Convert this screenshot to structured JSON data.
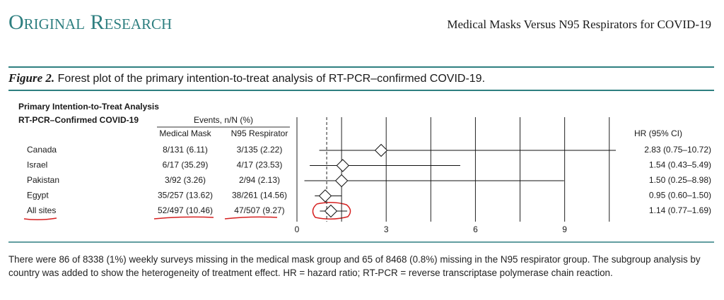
{
  "header": {
    "section": "Original Research",
    "running_title": "Medical Masks Versus N95 Respirators for COVID-19"
  },
  "figure": {
    "label": "Figure 2.",
    "caption": "Forest plot of the primary intention-to-treat analysis of RT-PCR–confirmed COVID-19."
  },
  "chart_data": {
    "type": "forest",
    "title_lines": [
      "Primary Intention-to-Treat Analysis",
      "RT-PCR–Confirmed COVID-19"
    ],
    "events_header": "Events, n/N (%)",
    "columns": [
      "Medical Mask",
      "N95 Respirator"
    ],
    "hr_header": "HR (95% CI)",
    "categories": [
      "Canada",
      "Israel",
      "Pakistan",
      "Egypt",
      "All sites"
    ],
    "medical_mask": [
      "8/131 (6.11)",
      "6/17 (35.29)",
      "3/92 (3.26)",
      "35/257 (13.62)",
      "52/497 (10.46)"
    ],
    "n95": [
      "3/135 (2.22)",
      "4/17 (23.53)",
      "2/94 (2.13)",
      "38/261 (14.56)",
      "47/507 (9.27)"
    ],
    "hr": [
      2.83,
      1.54,
      1.5,
      0.95,
      1.14
    ],
    "lower": [
      0.75,
      0.43,
      0.25,
      0.6,
      0.77
    ],
    "upper": [
      10.72,
      5.49,
      8.98,
      1.5,
      1.69
    ],
    "hr_labels": [
      "2.83 (0.75–10.72)",
      "1.54 (0.43–5.49)",
      "1.50 (0.25–8.98)",
      "0.95 (0.60–1.50)",
      "1.14 (0.77–1.69)"
    ],
    "xlim": [
      0,
      10.72
    ],
    "xticks": [
      0,
      3,
      6,
      9
    ],
    "minor_grid": [
      1.5,
      4.5,
      7.5,
      10.5
    ],
    "reference_line": 1
  },
  "footnote": "There were 86 of 8338 (1%) weekly surveys missing in the medical mask group and 65 of 8468 (0.8%) missing in the N95 respirator group. The subgroup analysis by country was added to show the heterogeneity of treatment effect. HR = hazard ratio; RT-PCR = reverse transcriptase polymerase chain reaction."
}
